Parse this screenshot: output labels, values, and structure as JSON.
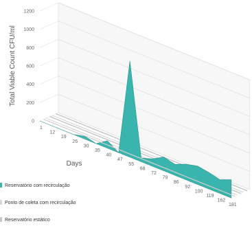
{
  "chart_data": {
    "type": "area",
    "xlabel": "Days",
    "ylabel": "Total Viable Count CFU/ml",
    "ylim": [
      0,
      1200
    ],
    "y_ticks": [
      0,
      200,
      400,
      600,
      800,
      1000,
      1200
    ],
    "grid": true,
    "x": [
      "1",
      "12",
      "19",
      "26",
      "30",
      "35",
      "40",
      "47",
      "55",
      "68",
      "72",
      "79",
      "86",
      "92",
      "100",
      "119",
      "162",
      "181"
    ],
    "series": [
      {
        "name": "Reservatório com recirculação",
        "color": "#3ab5ad",
        "values": [
          0,
          0,
          0,
          0,
          30,
          0,
          80,
          0,
          1050,
          40,
          80,
          150,
          120,
          170,
          200,
          180,
          150,
          200
        ]
      },
      {
        "name": "Ponto de coleta com recirculação",
        "color": "#d9d9d9",
        "values": [
          0,
          0,
          0,
          0,
          0,
          0,
          0,
          0,
          0,
          0,
          0,
          0,
          0,
          0,
          0,
          0,
          0,
          0
        ]
      },
      {
        "name": "Reservatório estático",
        "color": "#c8c8c8",
        "values": [
          0,
          0,
          0,
          0,
          0,
          0,
          0,
          0,
          0,
          0,
          0,
          0,
          0,
          0,
          0,
          0,
          0,
          0
        ]
      }
    ],
    "legend_position": "bottom-left"
  }
}
